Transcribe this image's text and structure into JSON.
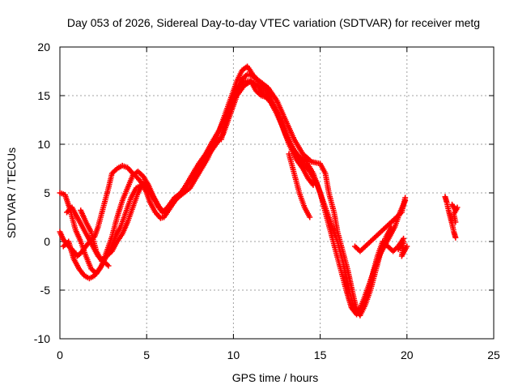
{
  "chart_data": {
    "type": "scatter",
    "title": "Day 053 of 2026, Sidereal Day-to-day VTEC variation (SDTVAR) for receiver metg",
    "xlabel": "GPS time / hours",
    "ylabel": "SDTVAR / TECUs",
    "xlim": [
      0,
      25
    ],
    "ylim": [
      -10,
      20
    ],
    "xticks": [
      "0",
      "5",
      "10",
      "15",
      "20",
      "25"
    ],
    "yticks": [
      "-10",
      "-5",
      "0",
      "5",
      "10",
      "15",
      "20"
    ],
    "grid": true,
    "marker": "+",
    "color": "#ff0000",
    "series": [
      {
        "points": [
          [
            0.0,
            1.0
          ],
          [
            0.2,
            0.2
          ],
          [
            0.5,
            -0.5
          ],
          [
            0.8,
            -1.0
          ],
          [
            1.0,
            -1.5
          ],
          [
            1.2,
            -1.2
          ],
          [
            1.5,
            -0.5
          ],
          [
            1.8,
            0.2
          ],
          [
            2.0,
            0.5
          ],
          [
            2.2,
            1.5
          ],
          [
            2.5,
            3.5
          ],
          [
            2.8,
            5.5
          ],
          [
            3.0,
            7.0
          ],
          [
            3.3,
            7.5
          ],
          [
            3.6,
            7.8
          ],
          [
            3.9,
            7.6
          ],
          [
            4.2,
            7.0
          ],
          [
            4.5,
            6.5
          ],
          [
            4.8,
            5.8
          ],
          [
            5.0,
            5.0
          ],
          [
            5.2,
            4.0
          ],
          [
            5.5,
            3.0
          ],
          [
            5.8,
            2.4
          ],
          [
            6.0,
            2.5
          ],
          [
            6.3,
            3.3
          ],
          [
            6.6,
            4.2
          ],
          [
            7.0,
            4.8
          ],
          [
            7.5,
            5.5
          ],
          [
            8.0,
            7.0
          ],
          [
            8.5,
            8.5
          ],
          [
            9.0,
            10.5
          ],
          [
            9.3,
            12.0
          ],
          [
            9.6,
            13.5
          ],
          [
            9.9,
            15.0
          ],
          [
            10.2,
            16.5
          ],
          [
            10.5,
            17.6
          ],
          [
            10.8,
            18.0
          ],
          [
            11.0,
            17.5
          ],
          [
            11.2,
            16.8
          ],
          [
            11.5,
            16.5
          ],
          [
            12.0,
            15.8
          ],
          [
            12.5,
            14.5
          ],
          [
            13.0,
            12.5
          ],
          [
            13.5,
            10.5
          ],
          [
            14.0,
            9.0
          ],
          [
            14.5,
            8.2
          ],
          [
            15.0,
            8.0
          ],
          [
            15.3,
            7.0
          ],
          [
            15.5,
            5.0
          ],
          [
            15.8,
            3.0
          ],
          [
            16.0,
            1.0
          ],
          [
            16.3,
            -1.0
          ],
          [
            16.6,
            -3.0
          ],
          [
            16.9,
            -5.5
          ],
          [
            17.1,
            -7.0
          ],
          [
            17.3,
            -7.6
          ],
          [
            17.6,
            -6.5
          ],
          [
            17.9,
            -5.0
          ],
          [
            18.2,
            -3.0
          ],
          [
            18.5,
            -1.0
          ],
          [
            18.8,
            0.5
          ],
          [
            19.1,
            1.5
          ]
        ]
      },
      {
        "points": [
          [
            0.0,
            5.0
          ],
          [
            0.3,
            4.8
          ],
          [
            0.6,
            3.2
          ],
          [
            0.9,
            1.2
          ],
          [
            1.2,
            0.0
          ],
          [
            1.5,
            -1.5
          ],
          [
            1.8,
            -2.8
          ],
          [
            2.1,
            -3.3
          ],
          [
            2.4,
            -2.5
          ],
          [
            2.7,
            -1.0
          ],
          [
            3.0,
            0.5
          ],
          [
            3.3,
            2.5
          ],
          [
            3.6,
            4.2
          ],
          [
            3.9,
            5.5
          ],
          [
            4.2,
            6.8
          ],
          [
            4.5,
            7.2
          ],
          [
            4.8,
            6.7
          ],
          [
            5.1,
            5.8
          ],
          [
            5.4,
            4.6
          ],
          [
            5.7,
            3.6
          ],
          [
            6.0,
            3.0
          ],
          [
            6.4,
            3.6
          ],
          [
            6.8,
            4.6
          ],
          [
            7.2,
            5.6
          ],
          [
            7.6,
            6.8
          ],
          [
            8.0,
            8.0
          ],
          [
            8.4,
            9.0
          ],
          [
            8.8,
            10.3
          ],
          [
            9.2,
            11.5
          ],
          [
            9.6,
            13.0
          ],
          [
            10.0,
            14.5
          ],
          [
            10.4,
            16.5
          ],
          [
            10.8,
            17.2
          ],
          [
            11.2,
            17.0
          ],
          [
            11.6,
            16.2
          ],
          [
            12.0,
            15.2
          ],
          [
            12.4,
            13.8
          ],
          [
            12.8,
            12.2
          ],
          [
            13.2,
            10.5
          ],
          [
            13.6,
            9.0
          ],
          [
            14.0,
            8.0
          ],
          [
            14.4,
            7.2
          ],
          [
            14.8,
            6.0
          ],
          [
            15.1,
            4.5
          ],
          [
            15.4,
            3.0
          ],
          [
            15.7,
            1.5
          ],
          [
            16.0,
            0.0
          ],
          [
            16.3,
            -2.0
          ],
          [
            16.6,
            -4.5
          ],
          [
            16.9,
            -6.5
          ],
          [
            17.2,
            -7.3
          ],
          [
            17.5,
            -6.0
          ],
          [
            17.8,
            -4.5
          ],
          [
            18.1,
            -3.0
          ],
          [
            18.4,
            -1.5
          ],
          [
            18.7,
            -0.5
          ],
          [
            19.0,
            0.5
          ],
          [
            19.3,
            1.5
          ],
          [
            19.6,
            3.0
          ],
          [
            19.9,
            4.2
          ]
        ]
      },
      {
        "points": [
          [
            0.2,
            -0.5
          ],
          [
            0.5,
            0.0
          ],
          [
            0.8,
            -1.8
          ],
          [
            1.1,
            -2.8
          ],
          [
            1.4,
            -3.5
          ],
          [
            1.7,
            -3.8
          ],
          [
            2.0,
            -3.5
          ],
          [
            2.3,
            -2.8
          ],
          [
            2.6,
            -1.8
          ],
          [
            2.9,
            -0.8
          ],
          [
            3.2,
            0.5
          ],
          [
            3.5,
            1.5
          ],
          [
            3.8,
            3.0
          ],
          [
            4.1,
            4.5
          ],
          [
            4.4,
            5.5
          ],
          [
            4.7,
            5.8
          ],
          [
            5.0,
            5.5
          ],
          [
            5.3,
            4.8
          ],
          [
            5.6,
            3.8
          ],
          [
            5.9,
            3.0
          ],
          [
            6.2,
            3.5
          ],
          [
            6.6,
            4.5
          ],
          [
            7.0,
            5.0
          ],
          [
            7.4,
            6.0
          ],
          [
            7.8,
            7.0
          ],
          [
            8.2,
            8.0
          ],
          [
            8.6,
            9.0
          ],
          [
            9.0,
            10.0
          ],
          [
            9.4,
            11.0
          ],
          [
            9.8,
            13.0
          ],
          [
            10.2,
            15.0
          ],
          [
            10.6,
            16.0
          ],
          [
            11.0,
            16.5
          ],
          [
            11.4,
            16.0
          ],
          [
            11.8,
            15.0
          ],
          [
            12.2,
            14.2
          ],
          [
            12.6,
            12.8
          ],
          [
            13.0,
            11.0
          ],
          [
            13.4,
            9.6
          ],
          [
            13.8,
            8.7
          ],
          [
            14.2,
            8.2
          ],
          [
            14.6,
            7.0
          ],
          [
            15.0,
            5.0
          ],
          [
            15.3,
            3.0
          ],
          [
            15.6,
            1.0
          ],
          [
            15.9,
            -1.0
          ],
          [
            16.2,
            -3.0
          ],
          [
            16.5,
            -5.0
          ],
          [
            16.8,
            -6.8
          ],
          [
            17.1,
            -7.5
          ],
          [
            17.4,
            -7.0
          ],
          [
            17.7,
            -5.5
          ],
          [
            18.0,
            -3.5
          ],
          [
            18.3,
            -1.5
          ],
          [
            18.6,
            0.0
          ],
          [
            18.9,
            -0.5
          ],
          [
            19.2,
            -1.0
          ],
          [
            19.5,
            -0.5
          ],
          [
            19.8,
            0.3
          ]
        ]
      },
      {
        "points": [
          [
            1.2,
            3.2
          ],
          [
            1.5,
            2.0
          ],
          [
            1.8,
            1.0
          ],
          [
            2.1,
            -1.0
          ],
          [
            2.4,
            -2.0
          ],
          [
            2.7,
            -1.5
          ],
          [
            3.0,
            -1.0
          ],
          [
            3.3,
            0.0
          ],
          [
            3.6,
            0.8
          ],
          [
            3.9,
            2.0
          ],
          [
            4.2,
            3.5
          ],
          [
            4.5,
            5.0
          ],
          [
            4.8,
            6.0
          ],
          [
            5.1,
            5.5
          ],
          [
            5.4,
            4.5
          ],
          [
            5.7,
            3.5
          ],
          [
            9.3,
            10.5
          ],
          [
            9.5,
            12.0
          ],
          [
            9.7,
            13.5
          ],
          [
            10.0,
            15.0
          ],
          [
            10.3,
            16.0
          ],
          [
            10.6,
            16.5
          ],
          [
            11.0,
            16.5
          ],
          [
            11.3,
            15.5
          ],
          [
            11.6,
            15.0
          ],
          [
            12.0,
            14.8
          ],
          [
            12.4,
            13.5
          ],
          [
            12.8,
            12.0
          ],
          [
            13.2,
            10.0
          ],
          [
            13.6,
            8.5
          ],
          [
            14.0,
            7.5
          ],
          [
            14.3,
            6.5
          ],
          [
            14.6,
            5.8
          ]
        ]
      },
      {
        "points": [
          [
            0.4,
            3.0
          ],
          [
            0.7,
            3.5
          ],
          [
            1.0,
            2.5
          ],
          [
            1.3,
            1.5
          ],
          [
            1.6,
            0.5
          ],
          [
            1.9,
            -0.5
          ],
          [
            2.2,
            -1.5
          ],
          [
            2.5,
            -2.0
          ],
          [
            2.8,
            -2.5
          ],
          [
            13.2,
            9.0
          ],
          [
            13.5,
            7.0
          ],
          [
            13.8,
            5.0
          ],
          [
            14.1,
            3.5
          ],
          [
            14.4,
            2.5
          ]
        ]
      },
      {
        "points": [
          [
            17.0,
            -0.5
          ],
          [
            17.3,
            -1.0
          ],
          [
            17.6,
            -0.5
          ],
          [
            17.9,
            0.0
          ],
          [
            18.2,
            0.5
          ],
          [
            18.5,
            1.0
          ],
          [
            18.8,
            1.5
          ],
          [
            19.1,
            2.0
          ],
          [
            19.4,
            2.5
          ],
          [
            19.7,
            3.0
          ],
          [
            19.9,
            4.5
          ],
          [
            19.5,
            -0.8
          ],
          [
            19.8,
            0.0
          ],
          [
            19.7,
            -1.5
          ],
          [
            20.0,
            -0.5
          ]
        ]
      },
      {
        "points": [
          [
            22.2,
            4.6
          ],
          [
            22.3,
            4.0
          ],
          [
            22.4,
            3.2
          ],
          [
            22.5,
            2.5
          ],
          [
            22.6,
            1.8
          ],
          [
            22.7,
            1.0
          ],
          [
            22.8,
            0.4
          ],
          [
            22.6,
            3.8
          ],
          [
            22.8,
            3.2
          ],
          [
            22.9,
            3.5
          ],
          [
            22.7,
            2.8
          ],
          [
            22.8,
            2.0
          ]
        ]
      }
    ]
  }
}
